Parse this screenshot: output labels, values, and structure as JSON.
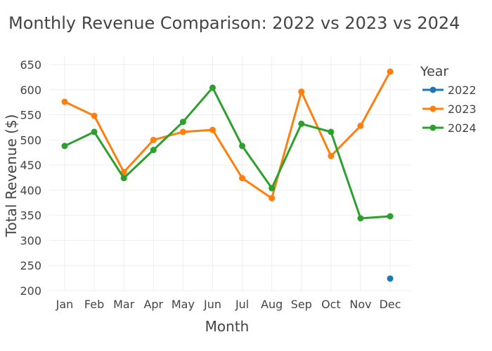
{
  "chart_data": {
    "type": "line",
    "title": "Monthly Revenue Comparison: 2022 vs 2023 vs 2024",
    "xlabel": "Month",
    "ylabel": "Total Revenue ($)",
    "categories": [
      "Jan",
      "Feb",
      "Mar",
      "Apr",
      "May",
      "Jun",
      "Jul",
      "Aug",
      "Sep",
      "Oct",
      "Nov",
      "Dec"
    ],
    "ylim": [
      200,
      650
    ],
    "yticks": [
      200,
      250,
      300,
      350,
      400,
      450,
      500,
      550,
      600,
      650
    ],
    "grid": true,
    "legend": {
      "title": "Year",
      "position": "right"
    },
    "series": [
      {
        "name": "2022",
        "color": "#1f77b4",
        "values": [
          null,
          null,
          null,
          null,
          null,
          null,
          null,
          null,
          null,
          null,
          null,
          224
        ]
      },
      {
        "name": "2023",
        "color": "#ff7f0e",
        "values": [
          576,
          548,
          436,
          500,
          516,
          520,
          424,
          384,
          596,
          468,
          528,
          636
        ]
      },
      {
        "name": "2024",
        "color": "#2ca02c",
        "values": [
          488,
          516,
          424,
          480,
          536,
          604,
          488,
          404,
          532,
          516,
          344,
          348
        ]
      }
    ]
  }
}
